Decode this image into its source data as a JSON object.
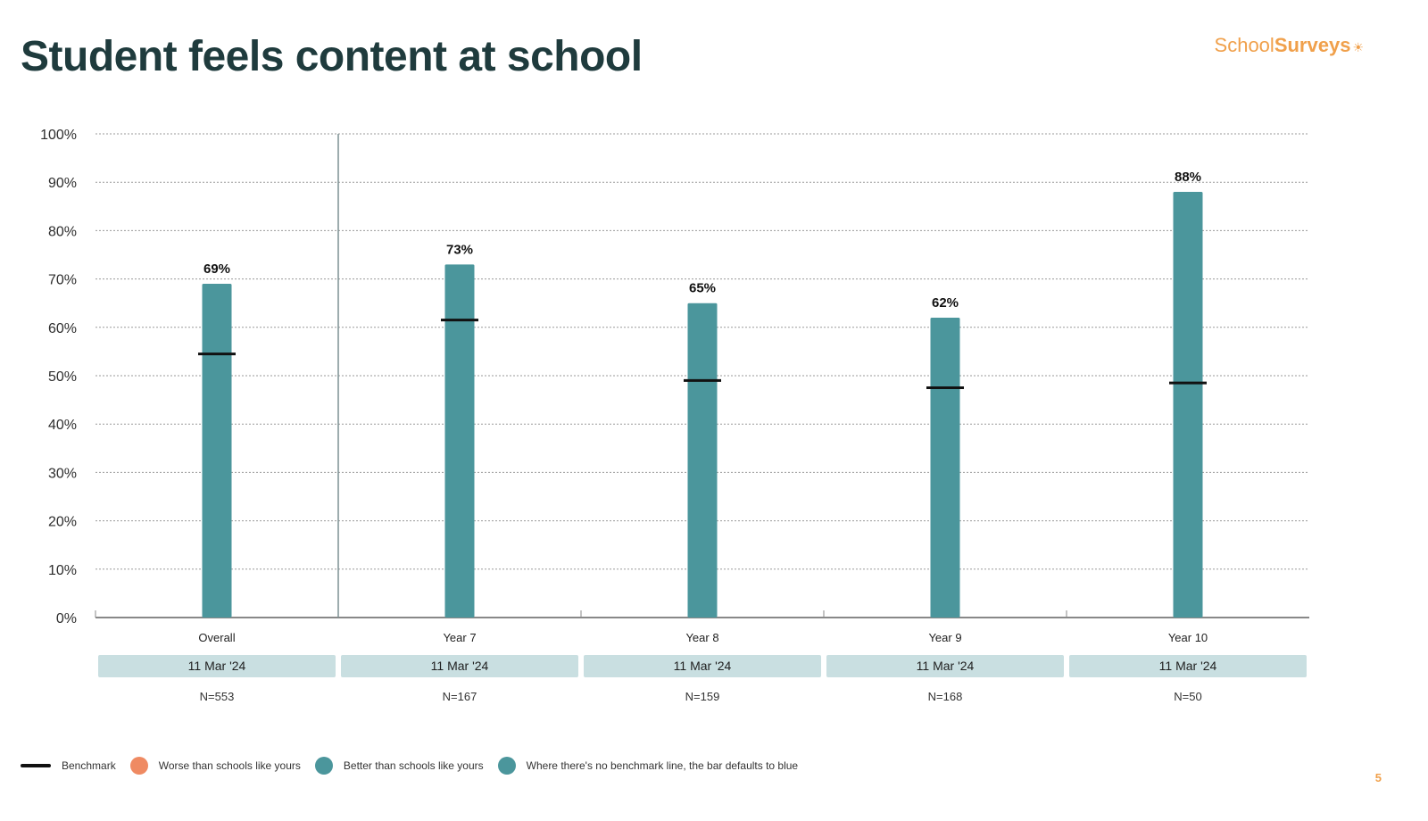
{
  "header": {
    "title": "Student feels content at school",
    "logo_part1": "School",
    "logo_part2": "Surveys"
  },
  "chart_data": {
    "type": "bar",
    "title": "Student feels content at school",
    "categories": [
      "Overall",
      "Year 7",
      "Year 8",
      "Year 9",
      "Year 10"
    ],
    "dates": [
      "11 Mar '24",
      "11 Mar '24",
      "11 Mar '24",
      "11 Mar '24",
      "11 Mar '24"
    ],
    "n_labels": [
      "N=553",
      "N=167",
      "N=159",
      "N=168",
      "N=50"
    ],
    "values": [
      69,
      73,
      65,
      62,
      88
    ],
    "value_labels": [
      "69%",
      "73%",
      "65%",
      "62%",
      "88%"
    ],
    "benchmarks": [
      54.5,
      61.5,
      49,
      47.5,
      48.5
    ],
    "ylim": [
      0,
      100
    ],
    "yticks": [
      0,
      10,
      20,
      30,
      40,
      50,
      60,
      70,
      80,
      90,
      100
    ],
    "ytick_labels": [
      "0%",
      "10%",
      "20%",
      "30%",
      "40%",
      "50%",
      "60%",
      "70%",
      "80%",
      "90%",
      "100%"
    ],
    "grid": true,
    "legend_position": "bottom-left",
    "colors": {
      "bar": "#4b969c",
      "benchmark": "#111111",
      "date_box": "#c9dfe1",
      "worse": "#ef8a62",
      "better": "#4b969c",
      "no_benchmark": "#4b969c"
    }
  },
  "legend": {
    "benchmark": "Benchmark",
    "worse": "Worse than schools like yours",
    "better": "Better than schools like yours",
    "no_benchmark": "Where there's no benchmark line, the bar defaults to blue"
  },
  "footer": {
    "page_number": "5"
  }
}
